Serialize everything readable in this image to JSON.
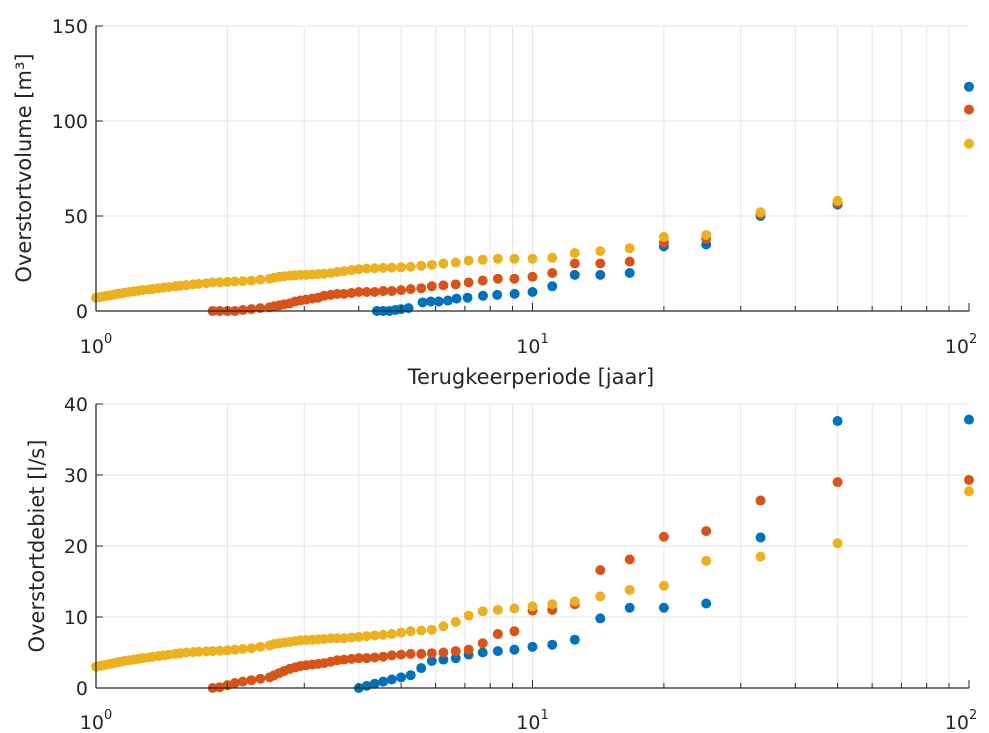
{
  "colors": {
    "series1": "#0072BD",
    "series2": "#D95319",
    "series3": "#EDB120",
    "grid": "#e6e6e6",
    "axis": "#262626"
  },
  "chart_data": [
    {
      "type": "scatter",
      "title": "",
      "xlabel": "Terugkeerperiode [jaar]",
      "ylabel": "Overstortvolume [m³]",
      "xscale": "log",
      "xlim": [
        1,
        100
      ],
      "ylim": [
        0,
        150
      ],
      "yticks": [
        0,
        50,
        100,
        150
      ],
      "xticks": [
        {
          "base": "10",
          "exp": "0"
        },
        {
          "base": "10",
          "exp": "1"
        },
        {
          "base": "10",
          "exp": "2"
        }
      ],
      "grid": true,
      "series": [
        {
          "color": "#0072BD",
          "x": [
            4.4,
            4.55,
            4.7,
            4.85,
            5.0,
            5.2,
            5.6,
            5.85,
            6.1,
            6.4,
            6.7,
            7.1,
            7.7,
            8.3,
            9.1,
            10.0,
            11.1,
            12.5,
            14.3,
            16.7,
            20,
            25,
            33.3,
            50,
            100
          ],
          "y": [
            0,
            0,
            0,
            0.5,
            1,
            1.5,
            4.5,
            5,
            5,
            5.5,
            6.5,
            7,
            8,
            8.5,
            9,
            10,
            13,
            19,
            19,
            20,
            34,
            35,
            50,
            56,
            118
          ]
        },
        {
          "color": "#D95319",
          "x": [
            1.85,
            1.92,
            2.0,
            2.08,
            2.17,
            2.27,
            2.38,
            2.5,
            2.56,
            2.63,
            2.7,
            2.78,
            2.86,
            2.94,
            3.03,
            3.13,
            3.23,
            3.33,
            3.45,
            3.57,
            3.7,
            3.85,
            4.0,
            4.17,
            4.35,
            4.55,
            4.76,
            5.0,
            5.26,
            5.56,
            5.88,
            6.25,
            6.67,
            7.14,
            7.69,
            8.33,
            9.09,
            10.0,
            11.1,
            12.5,
            14.3,
            16.7,
            20,
            25,
            33.3,
            50,
            100
          ],
          "y": [
            0,
            0,
            0,
            0,
            0.5,
            1,
            1.5,
            2,
            2.5,
            3,
            3.5,
            4,
            5,
            5.5,
            6,
            6.5,
            7,
            8,
            8.5,
            9,
            9,
            9.5,
            10,
            10,
            10,
            10.5,
            10.5,
            11,
            11.5,
            12,
            13,
            13.5,
            14,
            15,
            16,
            17,
            17,
            18,
            20,
            25,
            25,
            26,
            36,
            38,
            51,
            57,
            106
          ]
        },
        {
          "color": "#EDB120",
          "x": [
            1.0,
            1.02,
            1.04,
            1.06,
            1.08,
            1.1,
            1.12,
            1.14,
            1.16,
            1.19,
            1.22,
            1.25,
            1.28,
            1.32,
            1.35,
            1.39,
            1.43,
            1.47,
            1.52,
            1.56,
            1.61,
            1.67,
            1.72,
            1.79,
            1.85,
            1.92,
            2.0,
            2.08,
            2.17,
            2.27,
            2.38,
            2.5,
            2.56,
            2.63,
            2.7,
            2.78,
            2.86,
            2.94,
            3.03,
            3.13,
            3.23,
            3.33,
            3.45,
            3.57,
            3.7,
            3.85,
            4.0,
            4.17,
            4.35,
            4.55,
            4.76,
            5.0,
            5.26,
            5.56,
            5.88,
            6.25,
            6.67,
            7.14,
            7.69,
            8.33,
            9.09,
            10.0,
            11.1,
            12.5,
            14.3,
            16.7,
            20,
            25,
            33.3,
            50,
            100
          ],
          "y": [
            7,
            7.3,
            7.6,
            8,
            8.3,
            8.6,
            9,
            9.3,
            9.6,
            10,
            10.3,
            10.6,
            11,
            11.3,
            11.6,
            12,
            12.3,
            12.6,
            13,
            13.3,
            13.6,
            14,
            14.3,
            14.6,
            15,
            15.1,
            15.3,
            15.5,
            15.7,
            16,
            16.5,
            17,
            17.5,
            18,
            18.3,
            18.6,
            18.8,
            19,
            19,
            19.2,
            19.4,
            19.6,
            20,
            20.5,
            21,
            21.5,
            22,
            22.3,
            22.5,
            22.7,
            22.8,
            23,
            23.3,
            23.8,
            24.3,
            25,
            25.5,
            26.5,
            27,
            27.5,
            27.5,
            27.5,
            28,
            30.5,
            31.5,
            33,
            39,
            40,
            52,
            58,
            88
          ]
        }
      ]
    },
    {
      "type": "scatter",
      "title": "",
      "xlabel": "",
      "ylabel": "Overstortdebiet [l/s]",
      "xscale": "log",
      "xlim": [
        1,
        100
      ],
      "ylim": [
        0,
        40
      ],
      "yticks": [
        0,
        10,
        20,
        30,
        40
      ],
      "xticks": [
        {
          "base": "10",
          "exp": "0"
        },
        {
          "base": "10",
          "exp": "1"
        },
        {
          "base": "10",
          "exp": "2"
        }
      ],
      "grid": true,
      "series": [
        {
          "color": "#0072BD",
          "x": [
            4.0,
            4.17,
            4.35,
            4.55,
            4.76,
            5.0,
            5.26,
            5.56,
            5.88,
            6.25,
            6.67,
            7.14,
            7.69,
            8.33,
            9.09,
            10.0,
            11.1,
            12.5,
            14.3,
            16.7,
            20,
            25,
            33.3,
            50,
            100
          ],
          "y": [
            0,
            0.3,
            0.6,
            0.9,
            1.2,
            1.5,
            1.8,
            2.8,
            3.8,
            4.0,
            4.2,
            4.7,
            5.0,
            5.2,
            5.4,
            5.8,
            6.1,
            6.8,
            9.8,
            11.3,
            11.3,
            11.9,
            21.2,
            37.6,
            37.8
          ]
        },
        {
          "color": "#D95319",
          "x": [
            1.85,
            1.92,
            2.0,
            2.08,
            2.17,
            2.27,
            2.38,
            2.5,
            2.56,
            2.63,
            2.7,
            2.78,
            2.86,
            2.94,
            3.03,
            3.13,
            3.23,
            3.33,
            3.45,
            3.57,
            3.7,
            3.85,
            4.0,
            4.17,
            4.35,
            4.55,
            4.76,
            5.0,
            5.26,
            5.56,
            5.88,
            6.25,
            6.67,
            7.14,
            7.69,
            8.33,
            9.09,
            10.0,
            11.1,
            12.5,
            14.3,
            16.7,
            20,
            25,
            33.3,
            50,
            100
          ],
          "y": [
            0,
            0.1,
            0.4,
            0.7,
            0.9,
            1.1,
            1.3,
            1.5,
            1.8,
            2.1,
            2.4,
            2.7,
            2.9,
            3.1,
            3.2,
            3.3,
            3.4,
            3.5,
            3.7,
            3.9,
            4.0,
            4.1,
            4.2,
            4.2,
            4.3,
            4.4,
            4.6,
            4.7,
            4.8,
            4.8,
            4.9,
            5.0,
            5.2,
            5.4,
            6.3,
            7.6,
            8.0,
            10.9,
            11.0,
            11.8,
            16.6,
            18.1,
            21.3,
            22.1,
            26.4,
            29.0,
            29.3
          ]
        },
        {
          "color": "#EDB120",
          "x": [
            1.0,
            1.02,
            1.04,
            1.06,
            1.08,
            1.1,
            1.12,
            1.14,
            1.16,
            1.19,
            1.22,
            1.25,
            1.28,
            1.32,
            1.35,
            1.39,
            1.43,
            1.47,
            1.52,
            1.56,
            1.61,
            1.67,
            1.72,
            1.79,
            1.85,
            1.92,
            2.0,
            2.08,
            2.17,
            2.27,
            2.38,
            2.5,
            2.56,
            2.63,
            2.7,
            2.78,
            2.86,
            2.94,
            3.03,
            3.13,
            3.23,
            3.33,
            3.45,
            3.57,
            3.7,
            3.85,
            4.0,
            4.17,
            4.35,
            4.55,
            4.76,
            5.0,
            5.26,
            5.56,
            5.88,
            6.25,
            6.67,
            7.14,
            7.69,
            8.33,
            9.09,
            10.0,
            11.1,
            12.5,
            14.3,
            16.7,
            20,
            25,
            33.3,
            50,
            100
          ],
          "y": [
            3.0,
            3.1,
            3.2,
            3.3,
            3.4,
            3.5,
            3.6,
            3.7,
            3.8,
            3.9,
            4.0,
            4.1,
            4.2,
            4.3,
            4.4,
            4.5,
            4.6,
            4.7,
            4.8,
            4.9,
            5.0,
            5.05,
            5.1,
            5.15,
            5.2,
            5.25,
            5.3,
            5.4,
            5.5,
            5.6,
            5.8,
            6.0,
            6.2,
            6.3,
            6.4,
            6.5,
            6.6,
            6.7,
            6.75,
            6.8,
            6.85,
            6.9,
            7.0,
            7.0,
            7.0,
            7.1,
            7.2,
            7.3,
            7.4,
            7.5,
            7.6,
            7.8,
            8.0,
            8.1,
            8.2,
            8.7,
            9.3,
            10.2,
            10.8,
            11.0,
            11.2,
            11.5,
            11.8,
            12.2,
            12.9,
            13.8,
            14.4,
            17.9,
            18.5,
            20.4,
            27.7
          ]
        }
      ]
    }
  ]
}
